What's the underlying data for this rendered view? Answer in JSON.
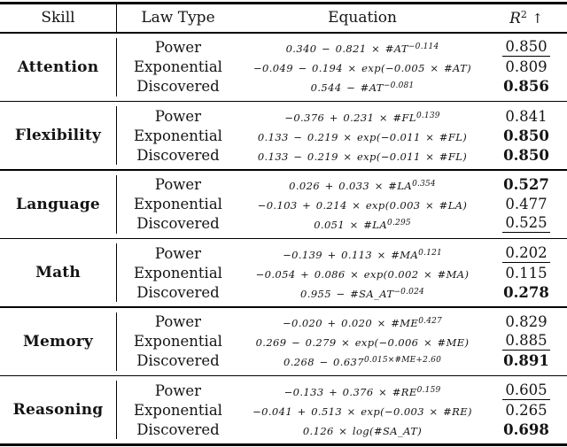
{
  "table": {
    "headers": {
      "skill": "Skill",
      "law": "Law Type",
      "equation": "Equation",
      "r2_base": "R",
      "r2_sup": "2",
      "r2_arrow": "↑"
    },
    "groups": [
      {
        "skill": "Attention",
        "rows": [
          {
            "law": "Power",
            "eq_main": "0.340 − 0.821 × #AT",
            "eq_sup": "−0.114",
            "r2": "0.850",
            "emph": "underline"
          },
          {
            "law": "Exponential",
            "eq_main": "−0.049 − 0.194 × exp(−0.005 × #AT)",
            "eq_sup": "",
            "r2": "0.809",
            "emph": "plain"
          },
          {
            "law": "Discovered",
            "eq_main": "0.544 − #AT",
            "eq_sup": "−0.081",
            "r2": "0.856",
            "emph": "bold"
          }
        ]
      },
      {
        "skill": "Flexibility",
        "rows": [
          {
            "law": "Power",
            "eq_main": "−0.376 + 0.231 × #FL",
            "eq_sup": "0.139",
            "r2": "0.841",
            "emph": "plain"
          },
          {
            "law": "Exponential",
            "eq_main": "0.133 − 0.219 × exp(−0.011 × #FL)",
            "eq_sup": "",
            "r2": "0.850",
            "emph": "bold"
          },
          {
            "law": "Discovered",
            "eq_main": "0.133 − 0.219 × exp(−0.011 × #FL)",
            "eq_sup": "",
            "r2": "0.850",
            "emph": "bold"
          }
        ]
      },
      {
        "skill": "Language",
        "rows": [
          {
            "law": "Power",
            "eq_main": "0.026 + 0.033 × #LA",
            "eq_sup": "0.354",
            "r2": "0.527",
            "emph": "bold"
          },
          {
            "law": "Exponential",
            "eq_main": "−0.103 + 0.214 × exp(0.003 × #LA)",
            "eq_sup": "",
            "r2": "0.477",
            "emph": "plain"
          },
          {
            "law": "Discovered",
            "eq_main": "0.051 × #LA",
            "eq_sup": "0.295",
            "r2": "0.525",
            "emph": "underline"
          }
        ]
      },
      {
        "skill": "Math",
        "rows": [
          {
            "law": "Power",
            "eq_main": "−0.139 + 0.113 × #MA",
            "eq_sup": "0.121",
            "r2": "0.202",
            "emph": "underline"
          },
          {
            "law": "Exponential",
            "eq_main": "−0.054 + 0.086 × exp(0.002 × #MA)",
            "eq_sup": "",
            "r2": "0.115",
            "emph": "plain"
          },
          {
            "law": "Discovered",
            "eq_main": "0.955 − #SA_AT",
            "eq_sup": "−0.024",
            "r2": "0.278",
            "emph": "bold"
          }
        ]
      },
      {
        "skill": "Memory",
        "rows": [
          {
            "law": "Power",
            "eq_main": "−0.020 + 0.020 × #ME",
            "eq_sup": "0.427",
            "r2": "0.829",
            "emph": "plain"
          },
          {
            "law": "Exponential",
            "eq_main": "0.269 − 0.279 × exp(−0.006 × #ME)",
            "eq_sup": "",
            "r2": "0.885",
            "emph": "underline"
          },
          {
            "law": "Discovered",
            "eq_main": "0.268 − 0.637",
            "eq_sup": "0.015×#ME+2.60",
            "r2": "0.891",
            "emph": "bold"
          }
        ]
      },
      {
        "skill": "Reasoning",
        "rows": [
          {
            "law": "Power",
            "eq_main": "−0.133 + 0.376 × #RE",
            "eq_sup": "0.159",
            "r2": "0.605",
            "emph": "underline"
          },
          {
            "law": "Exponential",
            "eq_main": "−0.041 + 0.513 × exp(−0.003 × #RE)",
            "eq_sup": "",
            "r2": "0.265",
            "emph": "plain"
          },
          {
            "law": "Discovered",
            "eq_main": "0.126 × log(#SA_AT)",
            "eq_sup": "",
            "r2": "0.698",
            "emph": "bold"
          }
        ]
      }
    ]
  }
}
